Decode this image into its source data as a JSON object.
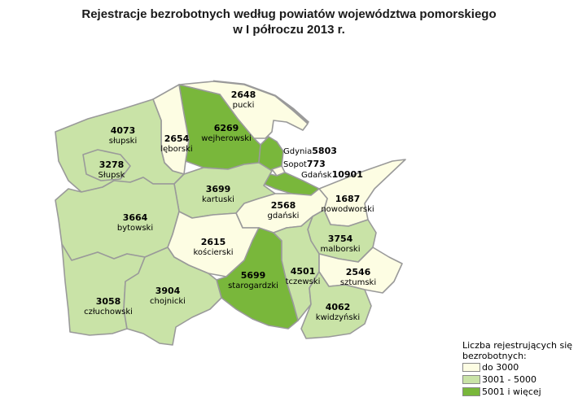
{
  "title": {
    "line1": "Rejestracje bezrobotnych według powiatów województwa pomorskiego",
    "line2": "w I półroczu 2013 r."
  },
  "colors": {
    "low": "#fdfde3",
    "mid": "#c9e3a7",
    "high": "#79b73b",
    "border": "#9a9a9a"
  },
  "legend": {
    "title": "Liczba rejestrujących się bezrobotnych:",
    "items": [
      {
        "label": "do 3000",
        "class": "low"
      },
      {
        "label": "3001 - 5000",
        "class": "mid"
      },
      {
        "label": "5001 i więcej",
        "class": "high"
      }
    ]
  },
  "counties": [
    {
      "id": "pucki",
      "value": "2648",
      "name": "pucki",
      "class": "low"
    },
    {
      "id": "wejherowski",
      "value": "6269",
      "name": "wejherowski",
      "class": "high"
    },
    {
      "id": "leborski",
      "value": "2654",
      "name": "lęborski",
      "class": "low"
    },
    {
      "id": "slupski",
      "value": "4073",
      "name": "słupski",
      "class": "mid"
    },
    {
      "id": "slupsk",
      "value": "3278",
      "name": "Słupsk",
      "class": "mid"
    },
    {
      "id": "gdynia",
      "value": "5803",
      "name": "Gdynia",
      "class": "high"
    },
    {
      "id": "sopot",
      "value": "773",
      "name": "Sopot",
      "class": "low"
    },
    {
      "id": "gdansk",
      "value": "10901",
      "name": "Gdańsk",
      "class": "high"
    },
    {
      "id": "kartuski",
      "value": "3699",
      "name": "kartuski",
      "class": "mid"
    },
    {
      "id": "nowodworski",
      "value": "1687",
      "name": "nowodworski",
      "class": "low"
    },
    {
      "id": "gdanski",
      "value": "2568",
      "name": "gdański",
      "class": "low"
    },
    {
      "id": "bytowski",
      "value": "3664",
      "name": "bytowski",
      "class": "mid"
    },
    {
      "id": "koscierski",
      "value": "2615",
      "name": "kościerski",
      "class": "low"
    },
    {
      "id": "malborski",
      "value": "3754",
      "name": "malborski",
      "class": "mid"
    },
    {
      "id": "starogardzki",
      "value": "5699",
      "name": "starogardzki",
      "class": "high"
    },
    {
      "id": "tczewski",
      "value": "4501",
      "name": "tczewski",
      "class": "mid"
    },
    {
      "id": "sztumski",
      "value": "2546",
      "name": "sztumski",
      "class": "low"
    },
    {
      "id": "czluchowski",
      "value": "3058",
      "name": "człuchowski",
      "class": "mid"
    },
    {
      "id": "chojnicki",
      "value": "3904",
      "name": "chojnicki",
      "class": "mid"
    },
    {
      "id": "kwidzynski",
      "value": "4062",
      "name": "kwidzyński",
      "class": "mid"
    }
  ]
}
